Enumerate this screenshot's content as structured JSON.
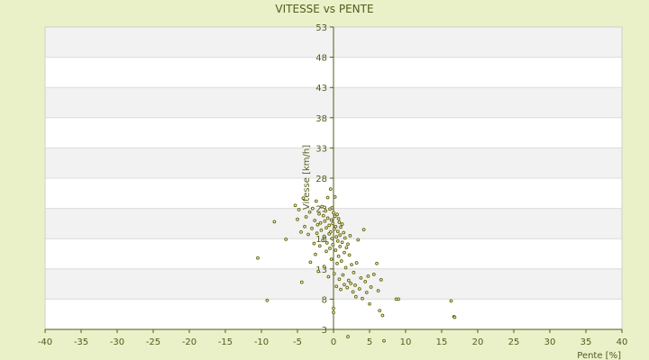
{
  "chart_data": {
    "type": "scatter",
    "title": "VITESSE vs PENTE",
    "xlabel": "Pente [%]",
    "ylabel": "Vitesse [km/h]",
    "xlim": [
      -40,
      40
    ],
    "ylim": [
      3,
      53
    ],
    "xticks": [
      -40,
      -35,
      -30,
      -25,
      -20,
      -15,
      -10,
      -5,
      0,
      5,
      10,
      15,
      20,
      25,
      30,
      35,
      40
    ],
    "yticks": [
      3,
      8,
      13,
      18,
      23,
      28,
      33,
      38,
      43,
      48,
      53
    ],
    "grid": true,
    "colors": {
      "background": "#eaf0c8",
      "plot_band_a": "#ffffff",
      "plot_band_b": "#f2f2f2",
      "axis": "#555b1d",
      "marker": "#6b6b10"
    },
    "points": [
      [
        -10.5,
        14.8
      ],
      [
        -9.2,
        7.8
      ],
      [
        -8.2,
        20.8
      ],
      [
        -6.6,
        17.9
      ],
      [
        -5.3,
        23.5
      ],
      [
        -5.0,
        21.2
      ],
      [
        -4.8,
        22.8
      ],
      [
        -4.5,
        19.1
      ],
      [
        -4.4,
        10.8
      ],
      [
        -4.2,
        24.7
      ],
      [
        -4.0,
        20.0
      ],
      [
        -3.8,
        21.6
      ],
      [
        -3.5,
        18.7
      ],
      [
        -3.3,
        22.4
      ],
      [
        -3.2,
        14.1
      ],
      [
        -3.0,
        19.7
      ],
      [
        -2.9,
        23.0
      ],
      [
        -2.7,
        17.2
      ],
      [
        -2.6,
        21.0
      ],
      [
        -2.5,
        15.4
      ],
      [
        -2.4,
        24.2
      ],
      [
        -2.3,
        18.9
      ],
      [
        -2.2,
        20.3
      ],
      [
        -2.1,
        12.6
      ],
      [
        -2.0,
        22.1
      ],
      [
        -1.9,
        16.8
      ],
      [
        -1.8,
        20.6
      ],
      [
        -1.7,
        19.4
      ],
      [
        -1.6,
        23.3
      ],
      [
        -1.5,
        17.7
      ],
      [
        -1.4,
        21.8
      ],
      [
        -1.3,
        13.4
      ],
      [
        -1.3,
        18.4
      ],
      [
        -1.2,
        20.9
      ],
      [
        -1.1,
        22.6
      ],
      [
        -1.0,
        15.9
      ],
      [
        -1.0,
        19.8
      ],
      [
        -0.9,
        17.3
      ],
      [
        -0.8,
        21.4
      ],
      [
        -0.8,
        24.8
      ],
      [
        -0.7,
        11.7
      ],
      [
        -0.6,
        18.8
      ],
      [
        -0.6,
        20.2
      ],
      [
        -0.5,
        22.9
      ],
      [
        -0.5,
        16.4
      ],
      [
        -0.4,
        19.1
      ],
      [
        -0.4,
        26.2
      ],
      [
        -0.3,
        21.1
      ],
      [
        -0.3,
        14.6
      ],
      [
        -0.2,
        18.0
      ],
      [
        -0.2,
        23.1
      ],
      [
        -0.1,
        20.5
      ],
      [
        -0.1,
        17.0
      ],
      [
        0.0,
        22.3
      ],
      [
        0.0,
        6.5
      ],
      [
        0.0,
        5.8
      ],
      [
        0.1,
        19.6
      ],
      [
        0.1,
        12.2
      ],
      [
        0.2,
        21.7
      ],
      [
        0.2,
        24.9
      ],
      [
        0.3,
        16.1
      ],
      [
        0.3,
        20.0
      ],
      [
        0.4,
        18.3
      ],
      [
        0.4,
        10.1
      ],
      [
        0.5,
        22.0
      ],
      [
        0.5,
        13.9
      ],
      [
        0.6,
        19.2
      ],
      [
        0.6,
        17.6
      ],
      [
        0.7,
        21.3
      ],
      [
        0.7,
        15.1
      ],
      [
        0.8,
        20.7
      ],
      [
        0.8,
        11.3
      ],
      [
        0.9,
        18.6
      ],
      [
        0.9,
        16.7
      ],
      [
        1.0,
        19.9
      ],
      [
        1.0,
        9.6
      ],
      [
        1.1,
        14.3
      ],
      [
        1.2,
        20.4
      ],
      [
        1.2,
        17.4
      ],
      [
        1.3,
        12.0
      ],
      [
        1.4,
        19.0
      ],
      [
        1.5,
        15.7
      ],
      [
        1.5,
        10.4
      ],
      [
        1.6,
        18.1
      ],
      [
        1.7,
        13.2
      ],
      [
        1.8,
        16.5
      ],
      [
        1.9,
        9.9
      ],
      [
        2.0,
        17.1
      ],
      [
        2.0,
        1.8
      ],
      [
        2.1,
        11.1
      ],
      [
        2.2,
        15.3
      ],
      [
        2.3,
        18.5
      ],
      [
        2.4,
        10.6
      ],
      [
        2.5,
        13.7
      ],
      [
        2.7,
        9.2
      ],
      [
        2.8,
        12.4
      ],
      [
        3.0,
        10.3
      ],
      [
        3.1,
        8.4
      ],
      [
        3.2,
        14.0
      ],
      [
        3.4,
        17.8
      ],
      [
        3.6,
        9.7
      ],
      [
        3.8,
        11.5
      ],
      [
        4.0,
        8.1
      ],
      [
        4.2,
        19.5
      ],
      [
        4.4,
        10.9
      ],
      [
        4.6,
        9.1
      ],
      [
        4.8,
        11.8
      ],
      [
        5.0,
        7.2
      ],
      [
        5.2,
        10.0
      ],
      [
        5.6,
        12.1
      ],
      [
        6.0,
        13.9
      ],
      [
        6.2,
        9.4
      ],
      [
        6.4,
        6.1
      ],
      [
        6.6,
        11.2
      ],
      [
        6.8,
        5.3
      ],
      [
        7.0,
        1.1
      ],
      [
        8.7,
        8.0
      ],
      [
        9.0,
        8.0
      ],
      [
        16.3,
        7.7
      ],
      [
        16.7,
        5.1
      ],
      [
        16.8,
        5.0
      ]
    ]
  }
}
